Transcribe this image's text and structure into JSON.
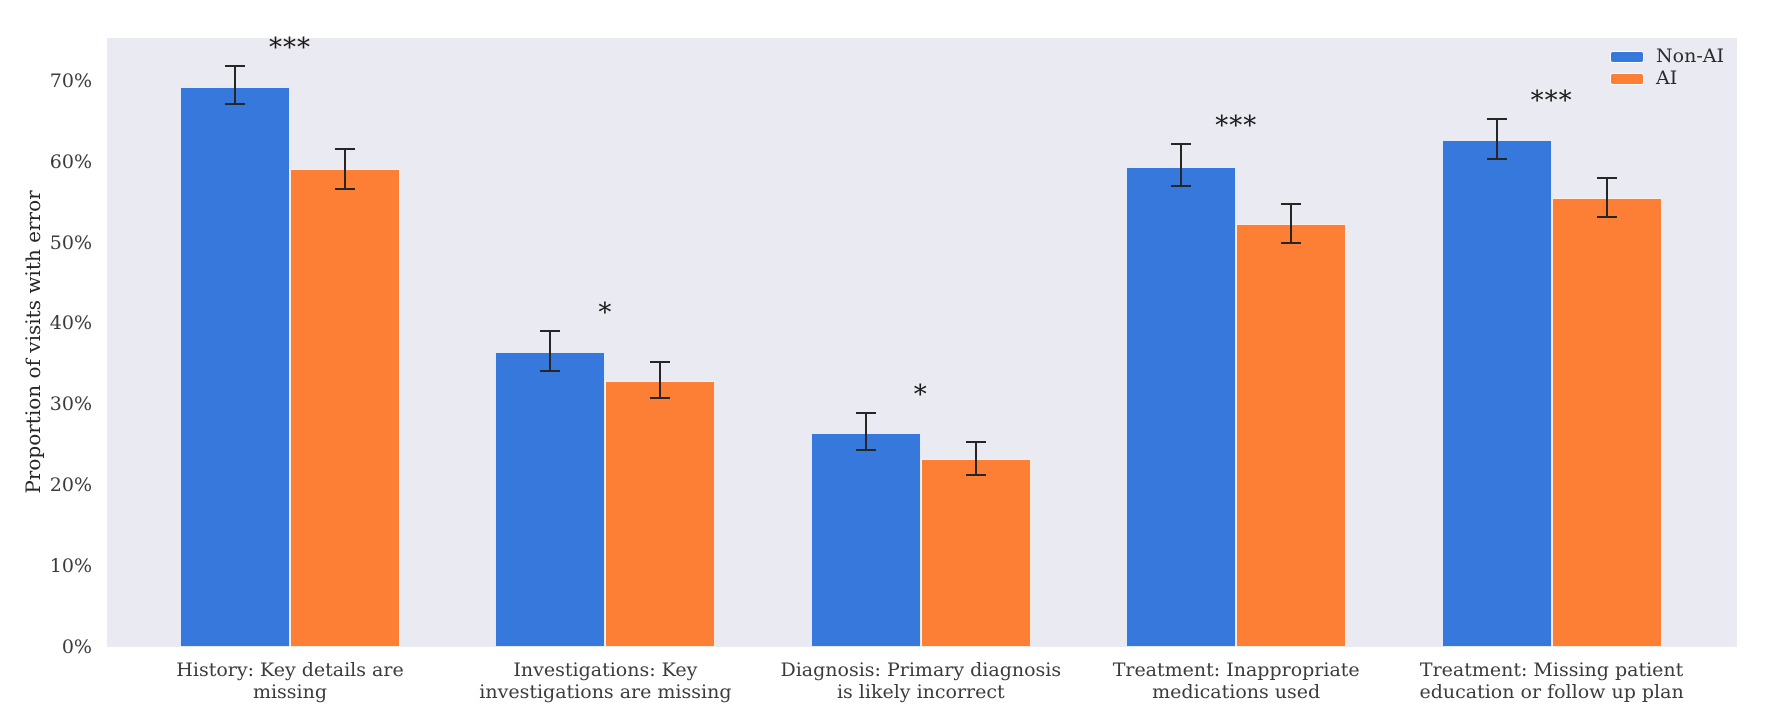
{
  "chart_data": {
    "type": "bar",
    "title": "",
    "xlabel": "",
    "ylabel": "Proportion of visits with error",
    "ylim": [
      0,
      75.3
    ],
    "yticks": [
      0,
      10,
      20,
      30,
      40,
      50,
      60,
      70
    ],
    "ytick_suffix": "%",
    "grid": false,
    "legend_position": "upper-right",
    "plot_bg_color": "#eaeaf2",
    "error_bar_color": "#262626",
    "categories": [
      "History: Key details are\nmissing",
      "Investigations: Key\ninvestigations are missing",
      "Diagnosis: Primary diagnosis\nis likely incorrect",
      "Treatment: Inappropriate\nmedications used",
      "Treatment: Missing patient\neducation or follow up plan"
    ],
    "series": [
      {
        "name": "Non-AI",
        "color": "#3778dc",
        "values": [
          69.2,
          36.5,
          26.5,
          59.4,
          62.7
        ],
        "ci_low": [
          67.2,
          34.1,
          24.4,
          57.0,
          60.3
        ],
        "ci_high": [
          71.8,
          39.1,
          28.9,
          62.2,
          65.3
        ]
      },
      {
        "name": "AI",
        "color": "#fd7f35",
        "values": [
          59.1,
          32.9,
          23.2,
          52.3,
          55.5
        ],
        "ci_low": [
          56.6,
          30.8,
          21.3,
          50.0,
          53.2
        ],
        "ci_high": [
          61.6,
          35.3,
          25.4,
          54.8,
          58.0
        ]
      }
    ],
    "significance": [
      "***",
      "*",
      "*",
      "***",
      "***"
    ]
  }
}
